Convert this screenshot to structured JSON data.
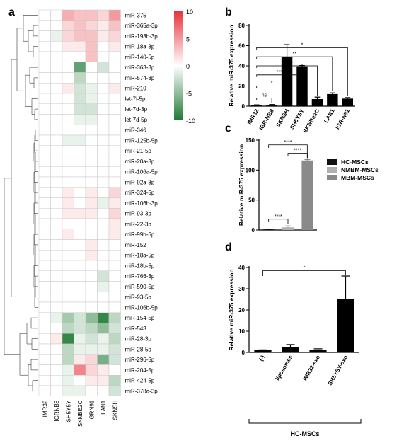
{
  "panel_labels": [
    "a",
    "b",
    "c",
    "d"
  ],
  "chart_data": [
    {
      "type": "heatmap",
      "panel": "a",
      "rows": [
        "miR-375",
        "miR-365a-3p",
        "miR-193b-3p",
        "miR-18a-3p",
        "miR-140-5p",
        "miR-363-3p",
        "miR-574-3p",
        "miR-210",
        "let-7i-5p",
        "let-7d-3p",
        "let-7d-5p",
        "miR-346",
        "miR-125b-5p",
        "miR-21-5p",
        "miR-20a-3p",
        "miR-106a-5p",
        "miR-92a-3p",
        "miR-324-5p",
        "miR-106b-3p",
        "miR-93-3p",
        "miR-22-3p",
        "miR-99b-5p",
        "miR-152",
        "miR-18a-5p",
        "miR-18b-5p",
        "miR-766-3p",
        "miR-590-5p",
        "miR-93-5p",
        "miR-106b-5p",
        "miR-154-5p",
        "miR-543",
        "miR-28-3p",
        "miR-28-5p",
        "miR-296-5p",
        "miR-204-5p",
        "miR-424-5p",
        "miR-378a-3p"
      ],
      "columns": [
        "IMR32",
        "IGRNB8",
        "SH5Y5Y",
        "SKNBE2C",
        "IGRN91",
        "LAN1",
        "SKNSH"
      ],
      "values": [
        [
          0,
          0,
          4,
          3,
          3,
          2,
          5
        ],
        [
          0,
          0,
          2,
          3,
          2,
          1,
          3
        ],
        [
          0,
          -1,
          2,
          3,
          3,
          1,
          2
        ],
        [
          0,
          0,
          1,
          1,
          3,
          0,
          1
        ],
        [
          0,
          0,
          0,
          0,
          3,
          0,
          0
        ],
        [
          0,
          0,
          0,
          -7,
          0,
          -2,
          0
        ],
        [
          0,
          0,
          0,
          -3,
          0,
          0,
          0
        ],
        [
          0,
          0,
          1,
          -2,
          -1,
          0,
          1
        ],
        [
          0,
          0,
          0,
          -2,
          -1,
          0,
          0
        ],
        [
          0,
          0,
          0,
          -2,
          -2,
          0,
          0
        ],
        [
          0,
          0,
          0,
          -1,
          -1,
          0,
          0
        ],
        [
          0,
          0,
          0,
          0,
          0,
          0,
          0
        ],
        [
          0,
          0,
          -1,
          -1,
          0,
          0,
          0
        ],
        [
          0,
          0,
          0,
          0,
          0,
          0,
          0
        ],
        [
          0,
          0,
          0,
          0,
          0,
          0,
          0
        ],
        [
          0,
          0,
          0,
          0,
          0,
          0,
          0
        ],
        [
          0,
          0,
          0,
          0,
          0,
          0,
          0
        ],
        [
          0,
          0,
          1,
          0,
          1,
          0,
          2
        ],
        [
          0,
          0,
          1,
          0,
          1,
          -1,
          1
        ],
        [
          0,
          0,
          1,
          1,
          1,
          0,
          2
        ],
        [
          0,
          0,
          0,
          0,
          0,
          0,
          1
        ],
        [
          0,
          0,
          1,
          0,
          0,
          0,
          1
        ],
        [
          0,
          0,
          0,
          0,
          1,
          0,
          0
        ],
        [
          0,
          0,
          0,
          0,
          1,
          0,
          0
        ],
        [
          0,
          0,
          0,
          0,
          0,
          0,
          0
        ],
        [
          0,
          0,
          0,
          0,
          0,
          -2,
          0
        ],
        [
          0,
          0,
          0,
          0,
          0,
          -1,
          0
        ],
        [
          0,
          0,
          0,
          0,
          0,
          0,
          0
        ],
        [
          0,
          0,
          0,
          0,
          0,
          0,
          0
        ],
        [
          0,
          -1,
          -4,
          -2,
          -5,
          -9,
          -3
        ],
        [
          0,
          0,
          -3,
          -2,
          -3,
          -5,
          -2
        ],
        [
          0,
          1,
          -9,
          -1,
          -2,
          -1,
          -3
        ],
        [
          0,
          0,
          -3,
          -1,
          -1,
          -1,
          -2
        ],
        [
          0,
          0,
          -3,
          1,
          2,
          -6,
          -2
        ],
        [
          0,
          0,
          -1,
          6,
          2,
          1,
          0
        ],
        [
          0,
          0,
          -1,
          0,
          1,
          1,
          -3
        ],
        [
          0,
          0,
          -1,
          -1,
          0,
          0,
          -2
        ]
      ],
      "colorbar": {
        "ticks": [
          10,
          5,
          0,
          -5,
          -10
        ],
        "min": -10,
        "max": 10,
        "high_color": "#e8343c",
        "mid_color": "#ffffff",
        "low_color": "#1e7a35"
      }
    },
    {
      "type": "bar",
      "panel": "b",
      "ylabel": "Relative miR-375 expression",
      "ylim": [
        0,
        80
      ],
      "yticks": [
        "0",
        "20",
        "40",
        "60",
        "80"
      ],
      "categories": [
        "IMR32",
        "IGR-NB8",
        "SKNSH",
        "SH5YSY",
        "SKNBe2C",
        "LAN1",
        "IGR-N91"
      ],
      "values": [
        1,
        1.2,
        49,
        39.5,
        7,
        12,
        7.5
      ],
      "errors": [
        0.3,
        0.4,
        12,
        0.8,
        2,
        1.2,
        1
      ],
      "significance": [
        {
          "from": "IMR32",
          "to": "IGR-NB8",
          "label": "ns"
        },
        {
          "from": "IMR32",
          "to": "SKNSH",
          "label": "*"
        },
        {
          "from": "IMR32",
          "to": "SH5YSY",
          "label": "***"
        },
        {
          "from": "IMR32",
          "to": "SKNBe2C",
          "label": "*"
        },
        {
          "from": "IMR32",
          "to": "LAN1",
          "label": "**"
        },
        {
          "from": "IMR32",
          "to": "IGR-N91",
          "label": "*"
        }
      ]
    },
    {
      "type": "bar",
      "panel": "c",
      "ylabel": "Relative miR-375 expression",
      "ylim": [
        0,
        150
      ],
      "yticks": [
        "0",
        "50",
        "100",
        "150"
      ],
      "categories": [
        "HC-MSCs",
        "NMBM-MSCs",
        "MBM-MSCs"
      ],
      "values": [
        1,
        4.5,
        116
      ],
      "errors": [
        0.3,
        2.5,
        1.5
      ],
      "colors": [
        "#111111",
        "#b0b0b0",
        "#8a8a8a"
      ],
      "legend": [
        {
          "label": "HC-MSCs",
          "color": "#111111"
        },
        {
          "label": "NMBM-MSCs",
          "color": "#b0b0b0"
        },
        {
          "label": "MBM-MSCs",
          "color": "#8a8a8a"
        }
      ],
      "significance": [
        {
          "from": "HC-MSCs",
          "to": "NMBM-MSCs",
          "label": "****"
        },
        {
          "from": "HC-MSCs",
          "to": "MBM-MSCs",
          "label": "****"
        },
        {
          "from": "NMBM-MSCs",
          "to": "MBM-MSCs",
          "label": "****"
        }
      ]
    },
    {
      "type": "bar",
      "panel": "d",
      "ylabel": "Relative miR-375 expression",
      "ylim": [
        0,
        40
      ],
      "yticks": [
        "0",
        "10",
        "20",
        "30",
        "40"
      ],
      "categories": [
        "(-)",
        "liposomes",
        "IMR32-exo",
        "SH5YSY-exo"
      ],
      "values": [
        1,
        2.5,
        1.2,
        25
      ],
      "errors": [
        0.2,
        1.2,
        0.5,
        11
      ],
      "group_label": "HC-MSCs",
      "significance": [
        {
          "from": "(-)",
          "to": "SH5YSY-exo",
          "label": "*"
        }
      ]
    }
  ]
}
